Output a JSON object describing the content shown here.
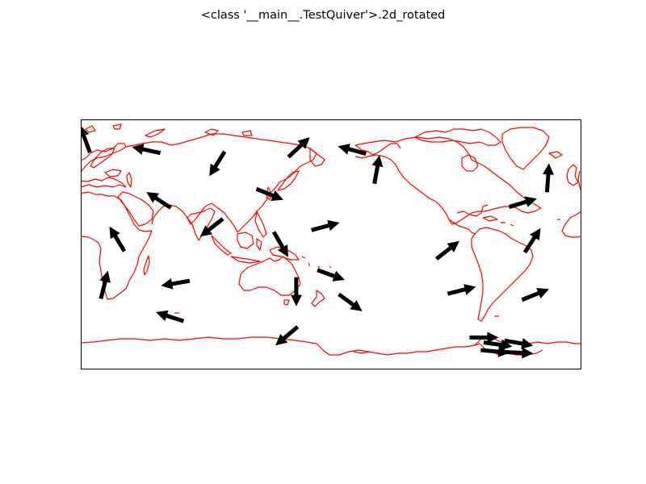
{
  "title": "<class '__main__.TestQuiver'>.2d_rotated",
  "map": {
    "projection": "plate-carree",
    "central_longitude": 180,
    "coastline_color": "#ff0000",
    "arrow_color": "#000000",
    "frame_color": "#000000"
  },
  "quiver": [
    {
      "lon": 3,
      "lat": 76,
      "dir_deg": 110
    },
    {
      "lon": 47,
      "lat": 68,
      "dir_deg": 168
    },
    {
      "lon": 98,
      "lat": 58,
      "dir_deg": 238
    },
    {
      "lon": 136,
      "lat": 36,
      "dir_deg": -22
    },
    {
      "lon": 56,
      "lat": 32,
      "dir_deg": 147
    },
    {
      "lon": 94,
      "lat": 12,
      "dir_deg": 218
    },
    {
      "lon": 144,
      "lat": 0,
      "dir_deg": 300
    },
    {
      "lon": 176,
      "lat": 13,
      "dir_deg": 15
    },
    {
      "lon": 180,
      "lat": -22,
      "dir_deg": -20
    },
    {
      "lon": 155,
      "lat": -34,
      "dir_deg": 270
    },
    {
      "lon": 213,
      "lat": 54,
      "dir_deg": 80
    },
    {
      "lon": 195,
      "lat": 68,
      "dir_deg": 165
    },
    {
      "lon": 157,
      "lat": 70,
      "dir_deg": 43
    },
    {
      "lon": 26,
      "lat": 4,
      "dir_deg": 121
    },
    {
      "lon": 17,
      "lat": -29,
      "dir_deg": 76
    },
    {
      "lon": 68,
      "lat": -28,
      "dir_deg": 190
    },
    {
      "lon": 64,
      "lat": -52,
      "dir_deg": 162
    },
    {
      "lon": 148,
      "lat": -66,
      "dir_deg": 220
    },
    {
      "lon": 194,
      "lat": -42,
      "dir_deg": -36
    },
    {
      "lon": 274,
      "lat": -33,
      "dir_deg": 14
    },
    {
      "lon": 327,
      "lat": -36,
      "dir_deg": 22
    },
    {
      "lon": 336,
      "lat": 48,
      "dir_deg": 86
    },
    {
      "lon": 318,
      "lat": 30,
      "dir_deg": 17
    },
    {
      "lon": 325,
      "lat": 3,
      "dir_deg": 57
    },
    {
      "lon": 264,
      "lat": -4,
      "dir_deg": 38
    },
    {
      "lon": 290,
      "lat": -67,
      "dir_deg": 0
    },
    {
      "lon": 300,
      "lat": -72,
      "dir_deg": -8
    },
    {
      "lon": 315,
      "lat": -71,
      "dir_deg": -10
    },
    {
      "lon": 298,
      "lat": -77,
      "dir_deg": -5
    },
    {
      "lon": 315,
      "lat": -78,
      "dir_deg": -3
    }
  ]
}
